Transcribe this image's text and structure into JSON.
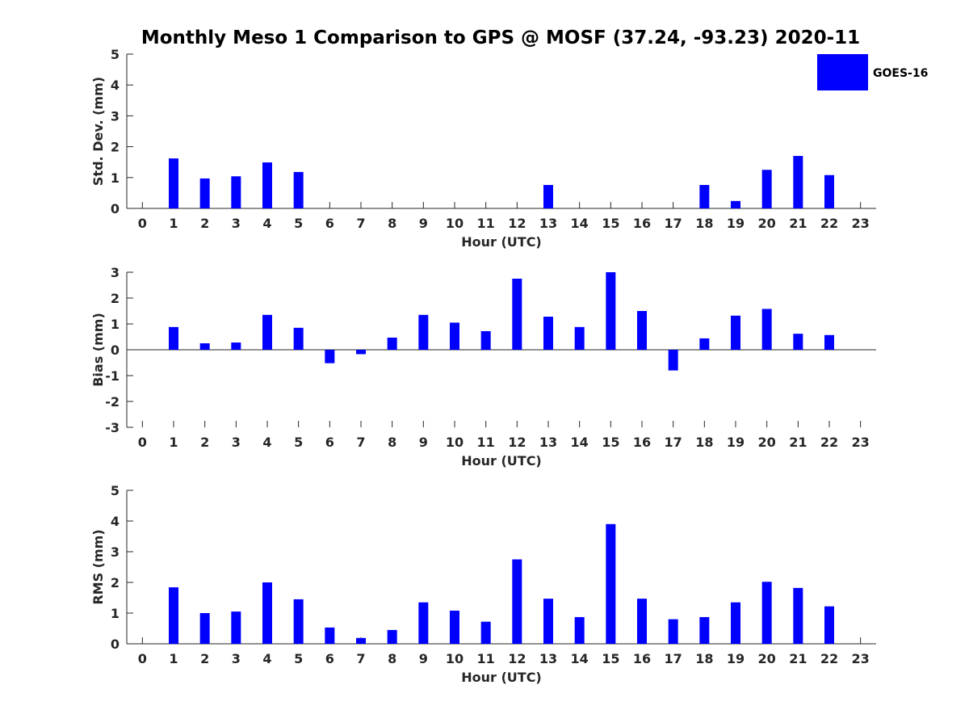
{
  "title": "Monthly Meso 1 Comparison to GPS @ MOSF (37.24, -93.23) 2020-11",
  "legend": {
    "label": "GOES-16",
    "color": "#0000ff"
  },
  "chart_data": [
    {
      "type": "bar",
      "xlabel": "Hour (UTC)",
      "ylabel": "Std. Dev. (mm)",
      "ylim": [
        0,
        5
      ],
      "yticks": [
        0,
        1,
        2,
        3,
        4,
        5
      ],
      "categories": [
        "0",
        "1",
        "2",
        "3",
        "4",
        "5",
        "6",
        "7",
        "8",
        "9",
        "10",
        "11",
        "12",
        "13",
        "14",
        "15",
        "16",
        "17",
        "18",
        "19",
        "20",
        "21",
        "22",
        "23"
      ],
      "series": [
        {
          "name": "GOES-16",
          "color": "#0000ff",
          "values": [
            null,
            1.62,
            0.97,
            1.04,
            1.49,
            1.18,
            null,
            null,
            null,
            null,
            null,
            null,
            null,
            0.76,
            null,
            null,
            null,
            null,
            0.76,
            0.24,
            1.25,
            1.7,
            1.08,
            null
          ]
        }
      ]
    },
    {
      "type": "bar",
      "xlabel": "Hour (UTC)",
      "ylabel": "Bias (mm)",
      "ylim": [
        -3,
        3
      ],
      "yticks": [
        -3,
        -2,
        -1,
        0,
        1,
        2,
        3
      ],
      "categories": [
        "0",
        "1",
        "2",
        "3",
        "4",
        "5",
        "6",
        "7",
        "8",
        "9",
        "10",
        "11",
        "12",
        "13",
        "14",
        "15",
        "16",
        "17",
        "18",
        "19",
        "20",
        "21",
        "22",
        "23"
      ],
      "series": [
        {
          "name": "GOES-16",
          "color": "#0000ff",
          "values": [
            null,
            0.88,
            0.25,
            0.28,
            1.35,
            0.85,
            -0.52,
            -0.17,
            0.47,
            1.35,
            1.05,
            0.72,
            2.75,
            1.28,
            0.88,
            3.0,
            1.5,
            -0.8,
            0.44,
            1.32,
            1.58,
            0.62,
            0.57,
            null
          ]
        }
      ]
    },
    {
      "type": "bar",
      "xlabel": "Hour (UTC)",
      "ylabel": "RMS (mm)",
      "ylim": [
        0,
        5
      ],
      "yticks": [
        0,
        1,
        2,
        3,
        4,
        5
      ],
      "categories": [
        "0",
        "1",
        "2",
        "3",
        "4",
        "5",
        "6",
        "7",
        "8",
        "9",
        "10",
        "11",
        "12",
        "13",
        "14",
        "15",
        "16",
        "17",
        "18",
        "19",
        "20",
        "21",
        "22",
        "23"
      ],
      "series": [
        {
          "name": "GOES-16",
          "color": "#0000ff",
          "values": [
            null,
            1.84,
            1.0,
            1.05,
            2.0,
            1.45,
            0.53,
            0.19,
            0.45,
            1.35,
            1.08,
            0.72,
            2.75,
            1.47,
            0.87,
            3.9,
            1.47,
            0.8,
            0.87,
            1.35,
            2.02,
            1.82,
            1.22,
            null
          ]
        }
      ]
    }
  ]
}
